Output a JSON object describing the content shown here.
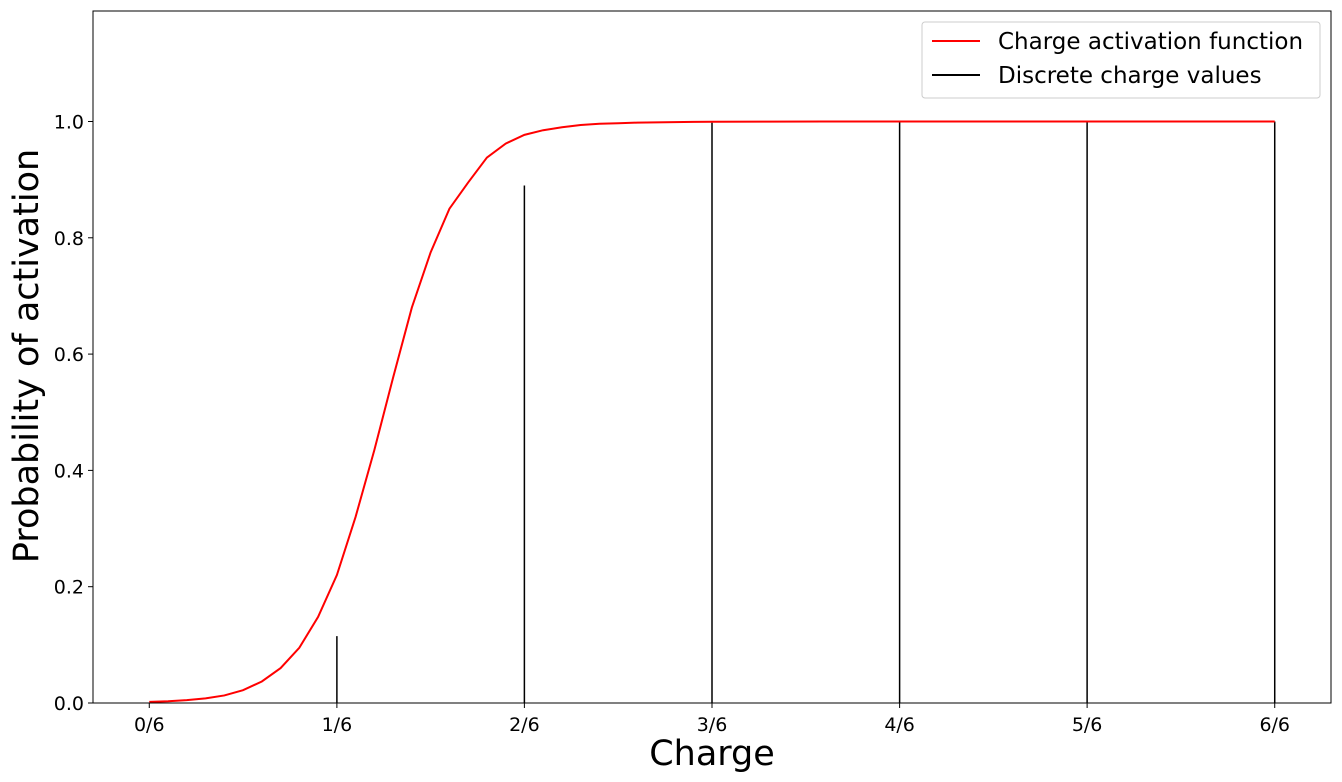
{
  "chart_data": {
    "type": "line",
    "title": "",
    "xlabel": "Charge",
    "ylabel": "Probability of activation",
    "xlim": [
      -0.05,
      1.05
    ],
    "ylim": [
      0,
      1.19
    ],
    "x_ticks": [
      0,
      0.1667,
      0.3333,
      0.5,
      0.6667,
      0.8333,
      1.0
    ],
    "x_tick_labels": [
      "0/6",
      "1/6",
      "2/6",
      "3/6",
      "4/6",
      "5/6",
      "6/6"
    ],
    "y_ticks": [
      0,
      0.2,
      0.4,
      0.6,
      0.8,
      1.0
    ],
    "y_tick_labels": [
      "0.0",
      "0.2",
      "0.4",
      "0.6",
      "0.8",
      "1.0"
    ],
    "legend_position": "top-right",
    "grid": false,
    "series": [
      {
        "name": "Charge activation function",
        "kind": "line",
        "color": "#ff0000",
        "x": [
          0,
          0.0167,
          0.0333,
          0.05,
          0.0667,
          0.0833,
          0.1,
          0.1167,
          0.1333,
          0.15,
          0.1667,
          0.1833,
          0.2,
          0.2167,
          0.2333,
          0.25,
          0.2667,
          0.2833,
          0.3,
          0.3167,
          0.3333,
          0.35,
          0.3667,
          0.3833,
          0.4,
          0.4167,
          0.4333,
          0.45,
          0.4667,
          0.4833,
          0.5,
          0.55,
          0.6,
          0.6667,
          0.75,
          0.8333,
          0.9167,
          1.0
        ],
        "y": [
          0.002,
          0.003,
          0.005,
          0.008,
          0.013,
          0.022,
          0.037,
          0.06,
          0.095,
          0.148,
          0.22,
          0.32,
          0.435,
          0.56,
          0.68,
          0.775,
          0.85,
          0.895,
          0.938,
          0.962,
          0.977,
          0.985,
          0.99,
          0.994,
          0.996,
          0.997,
          0.998,
          0.9985,
          0.999,
          0.9993,
          0.9995,
          0.9998,
          0.9999,
          1.0,
          1.0,
          1.0,
          1.0,
          1.0
        ]
      },
      {
        "name": "Discrete charge values",
        "kind": "stems",
        "color": "#000000",
        "x": [
          0.1667,
          0.3333,
          0.5,
          0.6667,
          0.8333,
          1.0
        ],
        "y": [
          0.115,
          0.89,
          0.998,
          1.0,
          1.0,
          1.0
        ]
      }
    ]
  }
}
